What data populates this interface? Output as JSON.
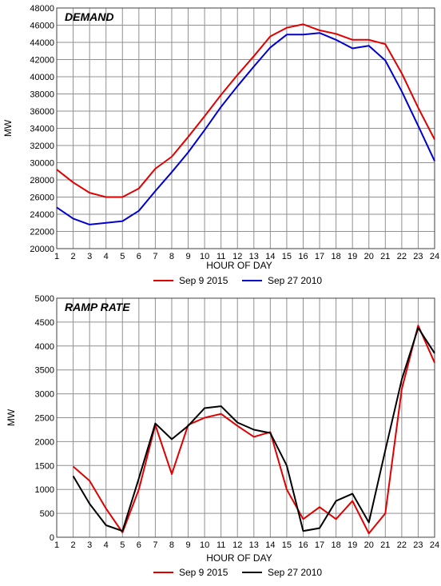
{
  "chart_data": [
    {
      "type": "line",
      "title": "DEMAND",
      "xlabel": "HOUR OF DAY",
      "ylabel": "MW",
      "x": [
        1,
        2,
        3,
        4,
        5,
        6,
        7,
        8,
        9,
        10,
        11,
        12,
        13,
        14,
        15,
        16,
        17,
        18,
        19,
        20,
        21,
        22,
        23,
        24
      ],
      "ylim": [
        20000,
        48000
      ],
      "yticks": [
        20000,
        22000,
        24000,
        26000,
        28000,
        30000,
        32000,
        34000,
        36000,
        38000,
        40000,
        42000,
        44000,
        46000,
        48000
      ],
      "grid": true,
      "legend_position": "bottom",
      "series": [
        {
          "name": "Sep 9 2015",
          "color": "#e00000",
          "values": [
            29200,
            27700,
            26500,
            26000,
            26000,
            27000,
            29300,
            30700,
            33000,
            35400,
            37900,
            40200,
            42400,
            44700,
            45700,
            46100,
            45400,
            45000,
            44300,
            44300,
            43800,
            40400,
            36400,
            32700
          ]
        },
        {
          "name": "Sep 27 2010",
          "color": "#0000d0",
          "values": [
            24800,
            23500,
            22800,
            23000,
            23200,
            24400,
            26700,
            28900,
            31200,
            33800,
            36500,
            38900,
            41200,
            43400,
            44900,
            44900,
            45100,
            44300,
            43300,
            43600,
            41900,
            38300,
            34300,
            30200
          ]
        }
      ]
    },
    {
      "type": "line",
      "title": "RAMP RATE",
      "xlabel": "HOUR OF DAY",
      "ylabel": "MW",
      "x": [
        1,
        2,
        3,
        4,
        5,
        6,
        7,
        8,
        9,
        10,
        11,
        12,
        13,
        14,
        15,
        16,
        17,
        18,
        19,
        20,
        21,
        22,
        23,
        24
      ],
      "ylim": [
        0,
        5000
      ],
      "yticks": [
        0,
        500,
        1000,
        1500,
        2000,
        2500,
        3000,
        3500,
        4000,
        4500,
        5000
      ],
      "grid": true,
      "legend_position": "bottom",
      "series": [
        {
          "name": "Sep 9 2015",
          "color": "#e00000",
          "x": [
            2,
            3,
            4,
            5,
            6,
            7,
            8,
            9,
            10,
            11,
            12,
            13,
            14,
            15,
            16,
            17,
            18,
            19,
            20,
            21,
            22,
            23,
            24
          ],
          "values": [
            1480,
            1180,
            600,
            100,
            1000,
            2350,
            1320,
            2350,
            2500,
            2580,
            2330,
            2100,
            2200,
            1000,
            380,
            630,
            380,
            760,
            80,
            500,
            3100,
            4430,
            3650
          ]
        },
        {
          "name": "Sep 27 2010",
          "color": "#000000",
          "x": [
            2,
            3,
            4,
            5,
            6,
            7,
            8,
            9,
            10,
            11,
            12,
            13,
            14,
            15,
            16,
            17,
            18,
            19,
            20,
            21,
            22,
            23,
            24
          ],
          "values": [
            1280,
            700,
            250,
            130,
            1230,
            2380,
            2050,
            2330,
            2700,
            2740,
            2400,
            2250,
            2180,
            1500,
            130,
            190,
            760,
            910,
            310,
            1820,
            3300,
            4380,
            3850
          ]
        }
      ]
    }
  ]
}
